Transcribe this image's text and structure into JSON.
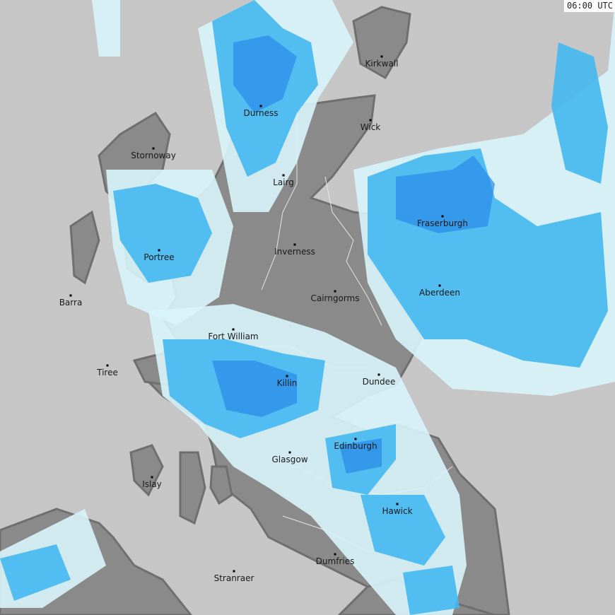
{
  "timestamp": "06:00 UTC",
  "colors": {
    "sea": "#c6c6c6",
    "land": "#8a8a8a",
    "coast": "#6f6f6f",
    "border": "#e0e0e0",
    "rain_light": "#d8f4fb",
    "rain_med": "#44b8f0",
    "rain_heavy": "#2a8ae8"
  },
  "cities": [
    {
      "name": "Kirkwall"
    },
    {
      "name": "Durness"
    },
    {
      "name": "Wick"
    },
    {
      "name": "Stornoway"
    },
    {
      "name": "Lairg"
    },
    {
      "name": "Fraserburgh"
    },
    {
      "name": "Inverness"
    },
    {
      "name": "Portree"
    },
    {
      "name": "Cairngorms"
    },
    {
      "name": "Aberdeen"
    },
    {
      "name": "Barra"
    },
    {
      "name": "Fort William"
    },
    {
      "name": "Tiree"
    },
    {
      "name": "Killin"
    },
    {
      "name": "Dundee"
    },
    {
      "name": "Edinburgh"
    },
    {
      "name": "Glasgow"
    },
    {
      "name": "Islay"
    },
    {
      "name": "Hawick"
    },
    {
      "name": "Dumfries"
    },
    {
      "name": "Stranraer"
    }
  ]
}
